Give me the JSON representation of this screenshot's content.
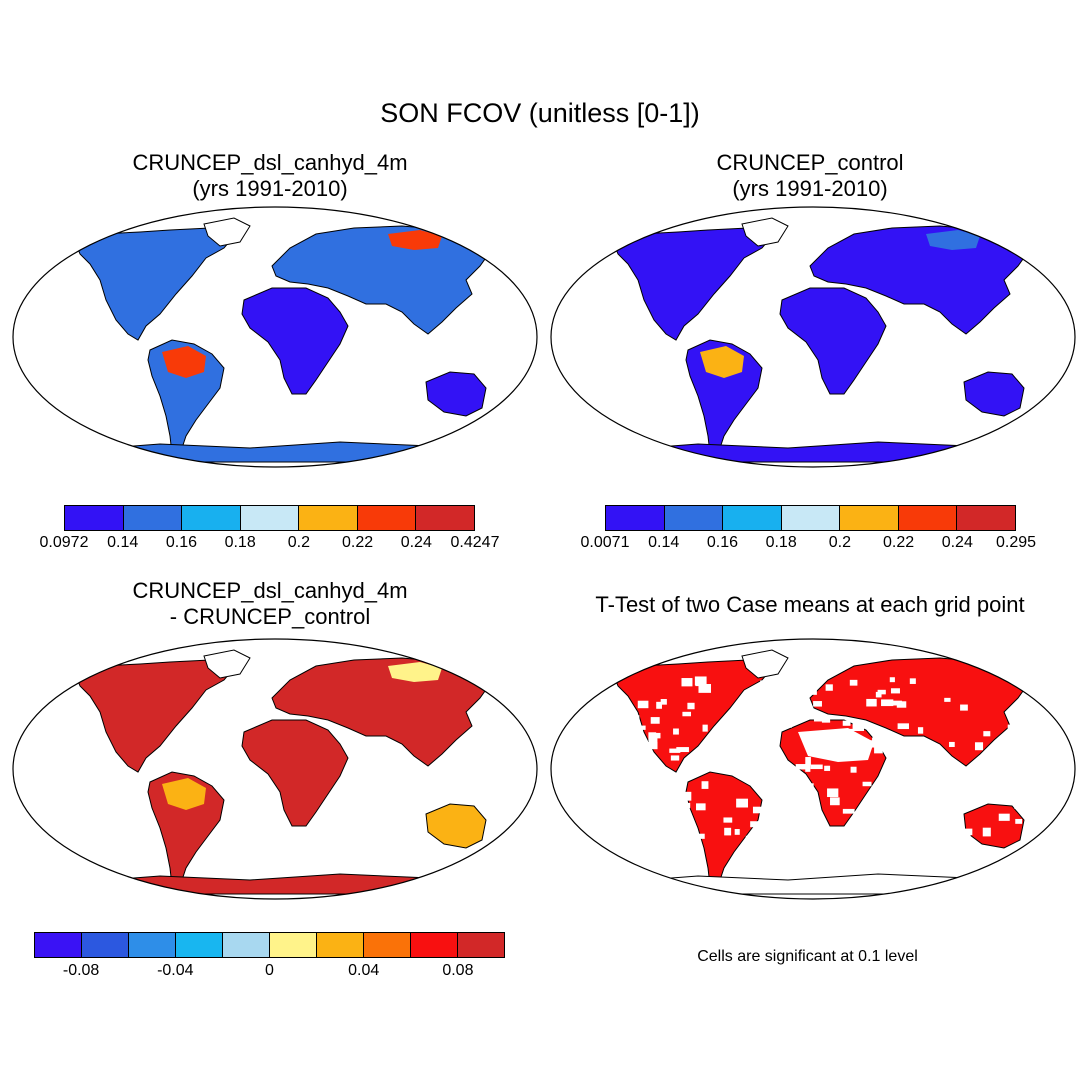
{
  "title": "SON FCOV (unitless [0-1])",
  "panels": [
    {
      "title_line1": "CRUNCEP_dsl_canhyd_4m",
      "title_line2": "(yrs 1991-2010)",
      "colorbar": {
        "colors": [
          "#3312f5",
          "#3070e0",
          "#18b0ef",
          "#c8e8f6",
          "#fbb214",
          "#f83a08",
          "#d22828"
        ],
        "labels": [
          "0.0972",
          "0.14",
          "0.16",
          "0.18",
          "0.2",
          "0.22",
          "0.24",
          "0.4247"
        ]
      },
      "regions": [
        {
          "region": "north-america",
          "level": 1
        },
        {
          "region": "south-america",
          "level": 1
        },
        {
          "region": "amazon",
          "level": 5
        },
        {
          "region": "eurasia",
          "level": 1
        },
        {
          "region": "africa",
          "level": 0
        },
        {
          "region": "australia",
          "level": 0
        },
        {
          "region": "siberia",
          "level": 5
        }
      ]
    },
    {
      "title_line1": "CRUNCEP_control",
      "title_line2": "(yrs 1991-2010)",
      "colorbar": {
        "colors": [
          "#3312f5",
          "#3070e0",
          "#18b0ef",
          "#c8e8f6",
          "#fbb214",
          "#f83a08",
          "#d22828"
        ],
        "labels": [
          "0.0071",
          "0.14",
          "0.16",
          "0.18",
          "0.2",
          "0.22",
          "0.24",
          "0.295"
        ]
      },
      "regions": [
        {
          "region": "north-america",
          "level": 0
        },
        {
          "region": "south-america",
          "level": 0
        },
        {
          "region": "amazon",
          "level": 4
        },
        {
          "region": "eurasia",
          "level": 0
        },
        {
          "region": "africa",
          "level": 0
        },
        {
          "region": "australia",
          "level": 0
        },
        {
          "region": "siberia",
          "level": 1
        }
      ]
    },
    {
      "title_line1": "CRUNCEP_dsl_canhyd_4m",
      "title_line2": "- CRUNCEP_control",
      "colorbar": {
        "colors": [
          "#3a12f5",
          "#2c58e0",
          "#2e8ee8",
          "#18b6f0",
          "#a8d8f0",
          "#fff38a",
          "#fbb214",
          "#fa7208",
          "#f81010",
          "#d22828"
        ],
        "labels": [
          "-0.08",
          "-0.04",
          "0",
          "0.04",
          "0.08"
        ]
      },
      "regions": [
        {
          "region": "north-america",
          "level": 9
        },
        {
          "region": "south-america",
          "level": 9
        },
        {
          "region": "amazon",
          "level": 6
        },
        {
          "region": "eurasia",
          "level": 9
        },
        {
          "region": "africa",
          "level": 9
        },
        {
          "region": "australia",
          "level": 6
        },
        {
          "region": "siberia",
          "level": 5
        }
      ]
    },
    {
      "title_line1": "T-Test of two Case means at each grid point",
      "title_line2": "",
      "significance_color": "#f81010",
      "note": "Cells are significant at 0.1 level"
    }
  ]
}
